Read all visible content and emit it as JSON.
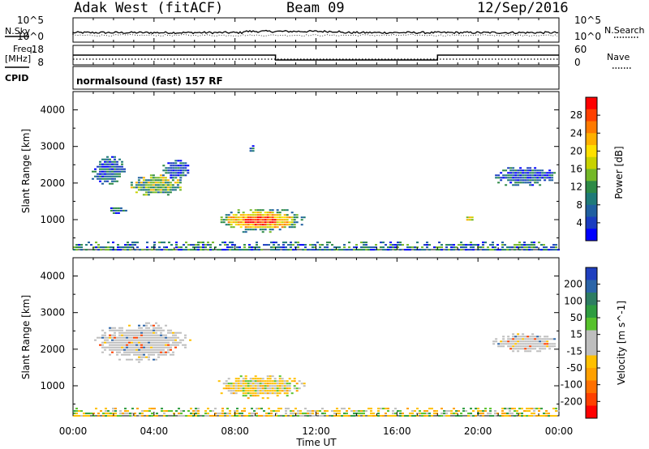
{
  "header": {
    "station": "Adak West (fitACF)",
    "beam": "Beam 09",
    "date": "12/Sep/2016"
  },
  "left_labels": {
    "nsky": "N.Sky",
    "freq_line1": "Freq.",
    "freq_line2": "[MHz]",
    "cpid": "CPID"
  },
  "right_labels": {
    "nsearch": "N.Search",
    "nave": "Nave"
  },
  "cpid_text": "normalsound (fast) 157 RF",
  "noise_axis": {
    "left_top": "10^5",
    "left_bottom": "10^0",
    "right_top": "10^5",
    "right_bottom": "10^0"
  },
  "freq_axis": {
    "left": [
      "18",
      "8"
    ],
    "right": [
      "60",
      "0"
    ]
  },
  "power_colorbar": {
    "label": "Power [dB]",
    "ticks": [
      "28",
      "24",
      "20",
      "16",
      "12",
      "8",
      "4"
    ],
    "colors": [
      "#ff0000",
      "#ff4000",
      "#ff7a00",
      "#ffb000",
      "#ffe000",
      "#c8d200",
      "#74b828",
      "#2d8a46",
      "#1e7a78",
      "#1f5fa0",
      "#1a3cc0",
      "#0000ff"
    ]
  },
  "velocity_colorbar": {
    "label": "Velocity [m s^-1]",
    "ticks": [
      "200",
      "100",
      "50",
      "15",
      "-15",
      "-50",
      "-100",
      "-200"
    ],
    "colors": [
      "#1f3fbf",
      "#2b64a8",
      "#2d7d62",
      "#2e9c40",
      "#57c22c",
      "#bebebe",
      "#bebebe",
      "#ffc000",
      "#ffa000",
      "#ff7000",
      "#ff4000",
      "#ff0000"
    ]
  },
  "time_axis": {
    "label": "Time UT",
    "ticks": [
      "00:00",
      "04:00",
      "08:00",
      "12:00",
      "16:00",
      "20:00",
      "00:00"
    ]
  },
  "range_axis": {
    "label": "Slant Range [km]",
    "ticks": [
      "4000",
      "3000",
      "2000",
      "1000"
    ]
  },
  "chart_data": {
    "type": "heatmap",
    "x_range_hours": [
      0,
      24
    ],
    "y_range_km": [
      180,
      4500
    ],
    "frequency_mhz": [
      {
        "start_h": 0,
        "end_h": 10,
        "value": 13
      },
      {
        "start_h": 10,
        "end_h": 18,
        "value": 10
      },
      {
        "start_h": 18,
        "end_h": 24,
        "value": 13
      }
    ],
    "power_features": [
      {
        "t0": 0.8,
        "t1": 2.6,
        "r0": 1900,
        "r1": 2800,
        "level": "low"
      },
      {
        "t0": 2.6,
        "t1": 5.5,
        "r0": 1650,
        "r1": 2300,
        "level": "mid"
      },
      {
        "t0": 4.3,
        "t1": 5.8,
        "r0": 2100,
        "r1": 2700,
        "level": "low"
      },
      {
        "t0": 1.6,
        "t1": 2.6,
        "r0": 1150,
        "r1": 1400,
        "level": "low"
      },
      {
        "t0": 6.8,
        "t1": 11.6,
        "r0": 650,
        "r1": 1350,
        "level": "high"
      },
      {
        "t0": 8.6,
        "t1": 8.9,
        "r0": 2800,
        "r1": 3100,
        "level": "low"
      },
      {
        "t0": 19.3,
        "t1": 19.7,
        "r0": 950,
        "r1": 1150,
        "level": "mid"
      },
      {
        "t0": 20.6,
        "t1": 24.0,
        "r0": 1900,
        "r1": 2500,
        "level": "low"
      },
      {
        "t0": 0.0,
        "t1": 24.0,
        "r0": 180,
        "r1": 400,
        "level": "ground"
      }
    ],
    "velocity_features": [
      {
        "t0": 0.8,
        "t1": 5.8,
        "r0": 1650,
        "r1": 2800,
        "class": "grey"
      },
      {
        "t0": 6.8,
        "t1": 11.6,
        "r0": 650,
        "r1": 1350,
        "class": "mixed_neg"
      },
      {
        "t0": 20.6,
        "t1": 24.0,
        "r0": 1900,
        "r1": 2500,
        "class": "grey"
      },
      {
        "t0": 0.0,
        "t1": 24.0,
        "r0": 180,
        "r1": 400,
        "class": "ground"
      }
    ]
  }
}
